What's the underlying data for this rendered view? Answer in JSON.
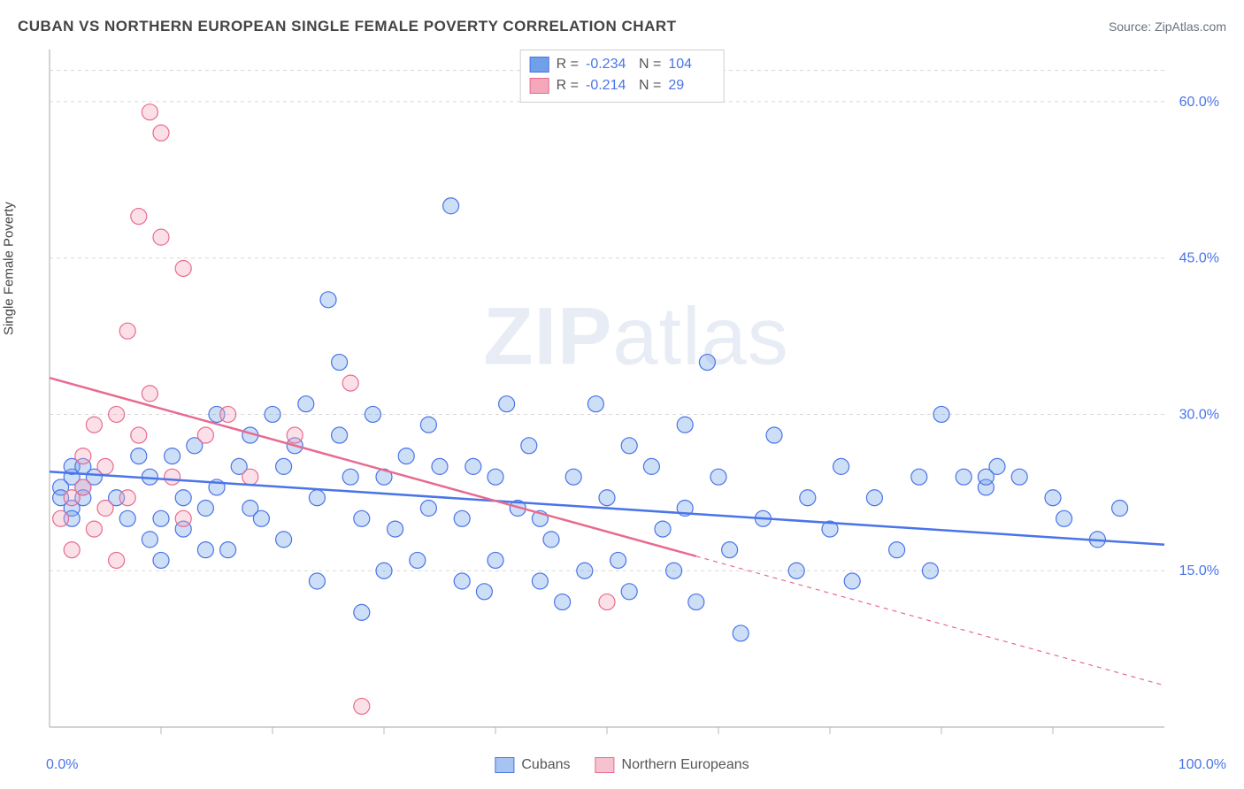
{
  "title": "CUBAN VS NORTHERN EUROPEAN SINGLE FEMALE POVERTY CORRELATION CHART",
  "source_prefix": "Source: ",
  "source_name": "ZipAtlas.com",
  "y_axis_label": "Single Female Poverty",
  "watermark_bold": "ZIP",
  "watermark_light": "atlas",
  "chart": {
    "type": "scatter",
    "xlim": [
      0,
      100
    ],
    "ylim": [
      0,
      65
    ],
    "y_ticks": [
      15,
      30,
      45,
      60
    ],
    "y_tick_labels": [
      "15.0%",
      "30.0%",
      "45.0%",
      "60.0%"
    ],
    "x_minor_ticks": [
      10,
      20,
      30,
      40,
      50,
      60,
      70,
      80,
      90
    ],
    "x_min_label": "0.0%",
    "x_max_label": "100.0%",
    "grid_color": "#d8d8d8",
    "axis_color": "#b8b8b8",
    "tick_label_color": "#4a74e8",
    "marker_radius": 9,
    "marker_stroke_width": 1.2,
    "marker_fill_opacity": 0.35,
    "series": [
      {
        "name": "Cubans",
        "color": "#6fa0e8",
        "stroke": "#4a74e8",
        "r_label": "R =",
        "n_label": "N =",
        "r_value": "-0.234",
        "n_value": "104",
        "trend": {
          "x1": 0,
          "y1": 24.5,
          "x2": 100,
          "y2": 17.5,
          "solid_until_x": 100
        },
        "points": [
          [
            1,
            23
          ],
          [
            1,
            22
          ],
          [
            2,
            24
          ],
          [
            2,
            21
          ],
          [
            2,
            25
          ],
          [
            2,
            20
          ],
          [
            3,
            23
          ],
          [
            3,
            25
          ],
          [
            3,
            22
          ],
          [
            4,
            24
          ],
          [
            6,
            22
          ],
          [
            7,
            20
          ],
          [
            8,
            26
          ],
          [
            9,
            18
          ],
          [
            9,
            24
          ],
          [
            10,
            20
          ],
          [
            10,
            16
          ],
          [
            11,
            26
          ],
          [
            12,
            19
          ],
          [
            12,
            22
          ],
          [
            13,
            27
          ],
          [
            14,
            21
          ],
          [
            14,
            17
          ],
          [
            15,
            23
          ],
          [
            15,
            30
          ],
          [
            16,
            17
          ],
          [
            17,
            25
          ],
          [
            18,
            21
          ],
          [
            18,
            28
          ],
          [
            19,
            20
          ],
          [
            20,
            30
          ],
          [
            21,
            25
          ],
          [
            21,
            18
          ],
          [
            22,
            27
          ],
          [
            23,
            31
          ],
          [
            24,
            14
          ],
          [
            24,
            22
          ],
          [
            25,
            41
          ],
          [
            26,
            35
          ],
          [
            26,
            28
          ],
          [
            27,
            24
          ],
          [
            28,
            20
          ],
          [
            28,
            11
          ],
          [
            29,
            30
          ],
          [
            30,
            15
          ],
          [
            30,
            24
          ],
          [
            31,
            19
          ],
          [
            32,
            26
          ],
          [
            33,
            16
          ],
          [
            34,
            21
          ],
          [
            34,
            29
          ],
          [
            35,
            25
          ],
          [
            36,
            50
          ],
          [
            37,
            14
          ],
          [
            37,
            20
          ],
          [
            38,
            25
          ],
          [
            39,
            13
          ],
          [
            40,
            24
          ],
          [
            40,
            16
          ],
          [
            41,
            31
          ],
          [
            42,
            21
          ],
          [
            43,
            27
          ],
          [
            44,
            14
          ],
          [
            44,
            20
          ],
          [
            45,
            18
          ],
          [
            46,
            12
          ],
          [
            47,
            24
          ],
          [
            48,
            15
          ],
          [
            49,
            31
          ],
          [
            50,
            22
          ],
          [
            51,
            16
          ],
          [
            52,
            27
          ],
          [
            52,
            13
          ],
          [
            54,
            25
          ],
          [
            55,
            19
          ],
          [
            56,
            15
          ],
          [
            57,
            29
          ],
          [
            57,
            21
          ],
          [
            58,
            12
          ],
          [
            59,
            35
          ],
          [
            60,
            24
          ],
          [
            61,
            17
          ],
          [
            62,
            9
          ],
          [
            64,
            20
          ],
          [
            65,
            28
          ],
          [
            67,
            15
          ],
          [
            68,
            22
          ],
          [
            70,
            19
          ],
          [
            71,
            25
          ],
          [
            72,
            14
          ],
          [
            74,
            22
          ],
          [
            76,
            17
          ],
          [
            78,
            24
          ],
          [
            79,
            15
          ],
          [
            80,
            30
          ],
          [
            82,
            24
          ],
          [
            84,
            23
          ],
          [
            85,
            25
          ],
          [
            87,
            24
          ],
          [
            90,
            22
          ],
          [
            91,
            20
          ],
          [
            94,
            18
          ],
          [
            96,
            21
          ],
          [
            84,
            24
          ]
        ]
      },
      {
        "name": "Northern Europeans",
        "color": "#f4a8ba",
        "stroke": "#e86b8f",
        "r_label": "R =",
        "n_label": "N =",
        "r_value": "-0.214",
        "n_value": "29",
        "trend": {
          "x1": 0,
          "y1": 33.5,
          "x2": 100,
          "y2": 4,
          "solid_until_x": 58
        },
        "points": [
          [
            1,
            20
          ],
          [
            2,
            22
          ],
          [
            2,
            17
          ],
          [
            3,
            23
          ],
          [
            3,
            26
          ],
          [
            4,
            19
          ],
          [
            4,
            29
          ],
          [
            5,
            21
          ],
          [
            5,
            25
          ],
          [
            6,
            16
          ],
          [
            6,
            30
          ],
          [
            7,
            22
          ],
          [
            7,
            38
          ],
          [
            8,
            49
          ],
          [
            8,
            28
          ],
          [
            9,
            59
          ],
          [
            9,
            32
          ],
          [
            10,
            47
          ],
          [
            10,
            57
          ],
          [
            11,
            24
          ],
          [
            12,
            44
          ],
          [
            12,
            20
          ],
          [
            14,
            28
          ],
          [
            16,
            30
          ],
          [
            18,
            24
          ],
          [
            22,
            28
          ],
          [
            27,
            33
          ],
          [
            28,
            2
          ],
          [
            50,
            12
          ]
        ]
      }
    ]
  },
  "bottom_legend": [
    {
      "label": "Cubans",
      "fill": "#a7c4f0",
      "stroke": "#4a74e8"
    },
    {
      "label": "Northern Europeans",
      "fill": "#f6c2d0",
      "stroke": "#e86b8f"
    }
  ]
}
